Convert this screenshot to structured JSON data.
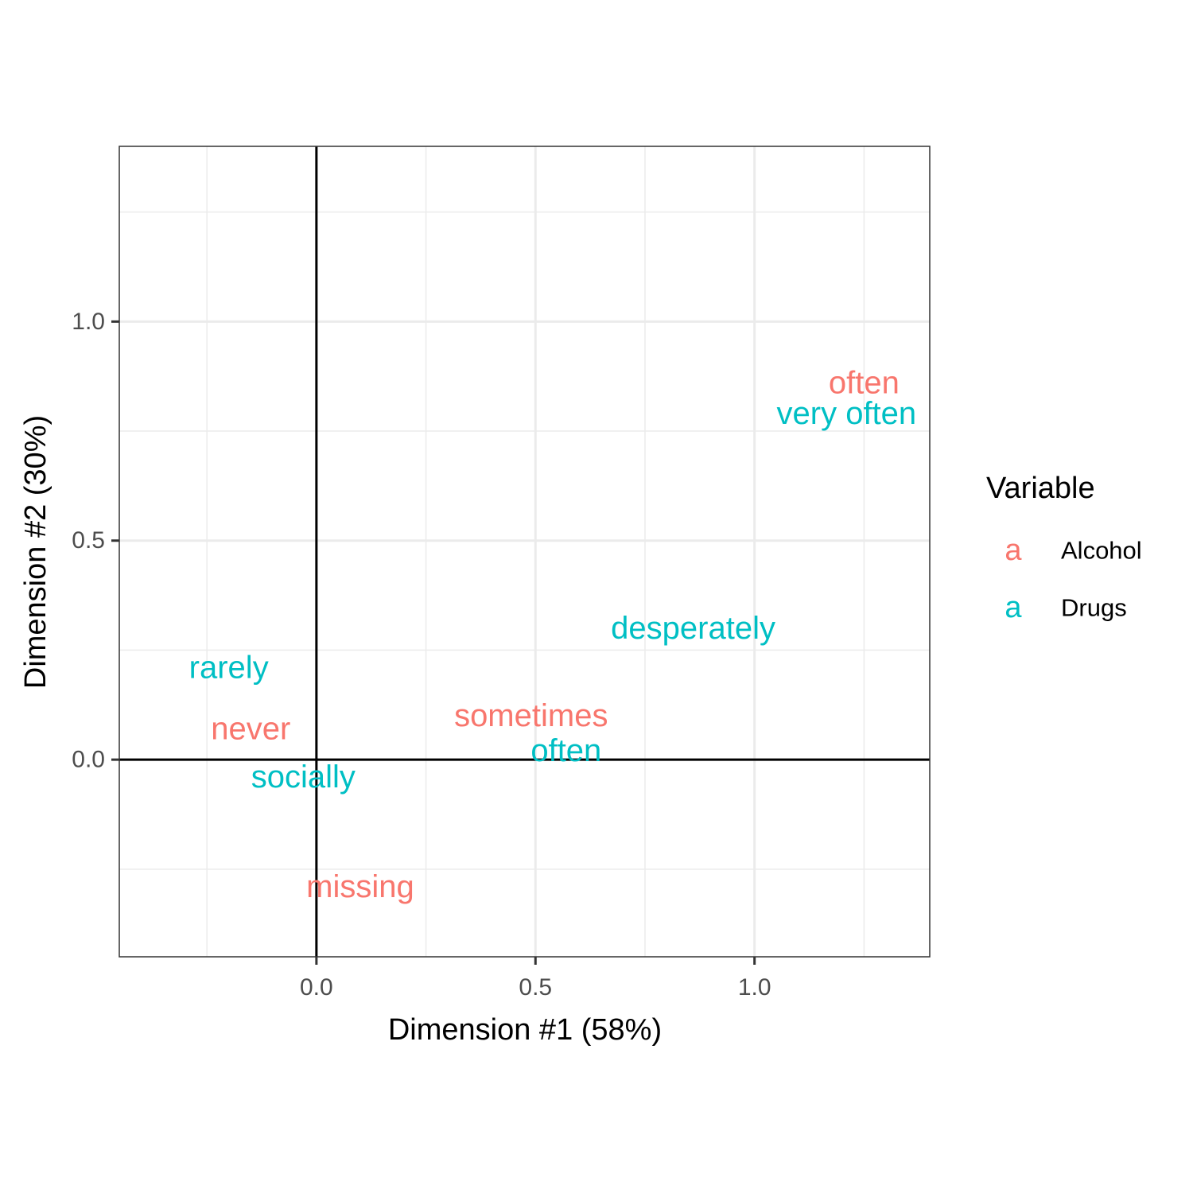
{
  "chart_data": {
    "type": "scatter",
    "title": "",
    "xlabel": "Dimension #1 (58%)",
    "ylabel": "Dimension #2 (30%)",
    "xlim": [
      -0.45,
      1.4
    ],
    "ylim": [
      -0.45,
      1.4
    ],
    "x_ticks": [
      "0.0",
      "0.5",
      "1.0"
    ],
    "y_ticks": [
      "0.0",
      "0.5",
      "1.0"
    ],
    "x_tick_values": [
      0.0,
      0.5,
      1.0
    ],
    "y_tick_values": [
      0.0,
      0.5,
      1.0
    ],
    "grid": true,
    "reference_lines": {
      "x": 0,
      "y": 0
    },
    "legend": {
      "title": "Variable",
      "position": "right",
      "key_glyph": "a",
      "entries": [
        "Alcohol",
        "Drugs"
      ]
    },
    "series": [
      {
        "name": "Alcohol",
        "color": "#F8766D",
        "points": [
          {
            "label": "often",
            "x": 1.25,
            "y": 0.86
          },
          {
            "label": "sometimes",
            "x": 0.49,
            "y": 0.1
          },
          {
            "label": "never",
            "x": -0.15,
            "y": 0.07
          },
          {
            "label": "missing",
            "x": 0.1,
            "y": -0.29
          }
        ]
      },
      {
        "name": "Drugs",
        "color": "#00BFC4",
        "points": [
          {
            "label": "very often",
            "x": 1.21,
            "y": 0.79
          },
          {
            "label": "desperately",
            "x": 0.86,
            "y": 0.3
          },
          {
            "label": "rarely",
            "x": -0.2,
            "y": 0.21
          },
          {
            "label": "often",
            "x": 0.57,
            "y": 0.02
          },
          {
            "label": "socially",
            "x": -0.03,
            "y": -0.04
          }
        ]
      }
    ]
  }
}
